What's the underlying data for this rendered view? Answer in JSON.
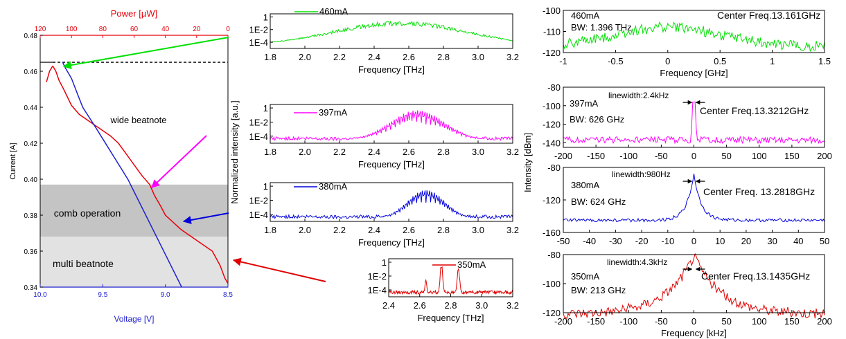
{
  "colors": {
    "axis": "#000000",
    "power": "#e8000b",
    "voltage": "#1f1fd0",
    "green": "#00e000",
    "magenta": "#ff00ff",
    "blue": "#0000dd",
    "red": "#e00000",
    "band_dark": "#c4c4c4",
    "band_light": "#e2e2e2"
  },
  "chart_data": [
    {
      "id": "liv",
      "type": "line",
      "x_top_label": "Power [µW]",
      "x_top_ticks": [
        "120",
        "100",
        "80",
        "60",
        "40",
        "20",
        "0"
      ],
      "x_top_range": [
        120,
        0
      ],
      "x_bottom_label": "Voltage [V]",
      "x_bottom_ticks": [
        "10.0",
        "9.5",
        "9.0",
        "8.5"
      ],
      "x_bottom_range": [
        10.0,
        8.5
      ],
      "ylabel": "Current [A]",
      "y_ticks": [
        "0.34",
        "0.36",
        "0.38",
        "0.40",
        "0.42",
        "0.44",
        "0.46",
        "0.48"
      ],
      "y_range": [
        0.34,
        0.48
      ],
      "bands": [
        {
          "label": "comb operation",
          "from": 0.368,
          "to": 0.397,
          "shade": "dark"
        },
        {
          "label": "multi beatnote",
          "from": 0.34,
          "to": 0.368,
          "shade": "light"
        }
      ],
      "annotations": [
        "wide beatnote",
        "comb operation",
        "multi beatnote"
      ],
      "threshold_current": 0.465,
      "series": [
        {
          "axis": "power",
          "x": [
            0,
            2,
            5,
            10,
            20,
            30,
            40,
            43,
            47,
            50,
            55,
            60,
            65,
            70,
            75,
            80,
            85,
            90,
            95,
            100,
            105,
            108,
            110,
            112
          ],
          "y": [
            0.342,
            0.345,
            0.352,
            0.36,
            0.366,
            0.372,
            0.38,
            0.385,
            0.391,
            0.397,
            0.402,
            0.408,
            0.414,
            0.42,
            0.424,
            0.427,
            0.43,
            0.433,
            0.436,
            0.441,
            0.45,
            0.455,
            0.46,
            0.463
          ]
        },
        {
          "axis": "power",
          "x": [
            112,
            114,
            115,
            116
          ],
          "y": [
            0.463,
            0.46,
            0.457,
            0.454
          ]
        },
        {
          "axis": "voltage",
          "x": [
            8.87,
            9.3,
            9.55,
            9.66,
            9.7,
            9.75,
            9.8,
            9.82
          ],
          "y": [
            0.34,
            0.4,
            0.428,
            0.44,
            0.447,
            0.456,
            0.462,
            0.465
          ]
        }
      ]
    },
    {
      "id": "spec_460",
      "type": "line",
      "current_label": "460mA",
      "xlabel": "Frequency [THz]",
      "x_ticks": [
        "1.8",
        "2.0",
        "2.2",
        "2.4",
        "2.6",
        "2.8",
        "3.0",
        "3.2"
      ],
      "x_range": [
        1.8,
        3.2
      ],
      "y_ticks": [
        "1",
        "1E-2",
        "1E-4"
      ],
      "y_scale": "log"
    },
    {
      "id": "spec_397",
      "type": "line",
      "current_label": "397mA",
      "xlabel": "Frequency [THz]",
      "x_ticks": [
        "1.8",
        "2.0",
        "2.2",
        "2.4",
        "2.6",
        "2.8",
        "3.0",
        "3.2"
      ],
      "x_range": [
        1.8,
        3.2
      ],
      "y_ticks": [
        "1",
        "1E-2",
        "1E-4"
      ],
      "y_scale": "log"
    },
    {
      "id": "spec_380",
      "type": "line",
      "current_label": "380mA",
      "xlabel": "Frequency [THz]",
      "x_ticks": [
        "1.8",
        "2.0",
        "2.2",
        "2.4",
        "2.6",
        "2.8",
        "3.0",
        "3.2"
      ],
      "x_range": [
        1.8,
        3.2
      ],
      "y_ticks": [
        "1",
        "1E-2",
        "1E-4"
      ],
      "y_scale": "log"
    },
    {
      "id": "spec_350",
      "type": "line",
      "current_label": "350mA",
      "xlabel": "Frequency [THz]",
      "x_ticks": [
        "2.4",
        "2.6",
        "2.8",
        "3.0",
        "3.2"
      ],
      "x_range": [
        2.4,
        3.2
      ],
      "y_ticks": [
        "1",
        "1E-2",
        "1E-4"
      ],
      "y_scale": "log"
    },
    {
      "id": "beat_460",
      "type": "line",
      "current_label": "460mA",
      "center": "Center Freq.13.161GHz",
      "bw": "BW: 1.396 THz",
      "xlabel": "Frequency [GHz]",
      "x_ticks": [
        "-1",
        "-0.5",
        "0",
        "0.5",
        "1",
        "1.5"
      ],
      "x_range": [
        -1,
        1.5
      ],
      "y_ticks": [
        "-100",
        "-110",
        "-120"
      ],
      "y_range": [
        -120,
        -100
      ]
    },
    {
      "id": "beat_397",
      "type": "line",
      "current_label": "397mA",
      "center": "Center Freq.13.3212GHz",
      "bw": "BW: 626 GHz",
      "linewidth": "linewidth:2.4kHz",
      "x_ticks": [
        "-200",
        "-150",
        "-100",
        "-50",
        "0",
        "50",
        "100",
        "150",
        "200"
      ],
      "x_range": [
        -200,
        200
      ],
      "y_ticks": [
        "-80",
        "-100",
        "-120",
        "-140"
      ],
      "y_range": [
        -145,
        -80
      ]
    },
    {
      "id": "beat_380",
      "type": "line",
      "current_label": "380mA",
      "center": "Center Freq. 13.2818GHz",
      "bw": "BW: 624 GHz",
      "linewidth": "linewidth:980Hz",
      "x_ticks": [
        "-50",
        "-40",
        "-30",
        "-20",
        "-10",
        "0",
        "10",
        "20",
        "30",
        "40",
        "50"
      ],
      "x_range": [
        -50,
        50
      ],
      "y_ticks": [
        "-80",
        "-120",
        "-160"
      ],
      "y_range": [
        -160,
        -80
      ]
    },
    {
      "id": "beat_350",
      "type": "line",
      "current_label": "350mA",
      "center": "Center Freq.13.1435GHz",
      "bw": "BW: 213 GHz",
      "linewidth": "linewidth:4.3kHz",
      "xlabel": "Frequency [kHz]",
      "x_ticks": [
        "-200",
        "-150",
        "-100",
        "-50",
        "0",
        "50",
        "100",
        "150",
        "200"
      ],
      "x_range": [
        -200,
        200
      ],
      "y_ticks": [
        "-80",
        "-100",
        "-120"
      ],
      "y_range": [
        -120,
        -80
      ]
    }
  ],
  "shared_labels": {
    "spectra_ylabel": "Normalized intensity [a.u.]",
    "beat_ylabel": "Intensity [dBm]"
  }
}
